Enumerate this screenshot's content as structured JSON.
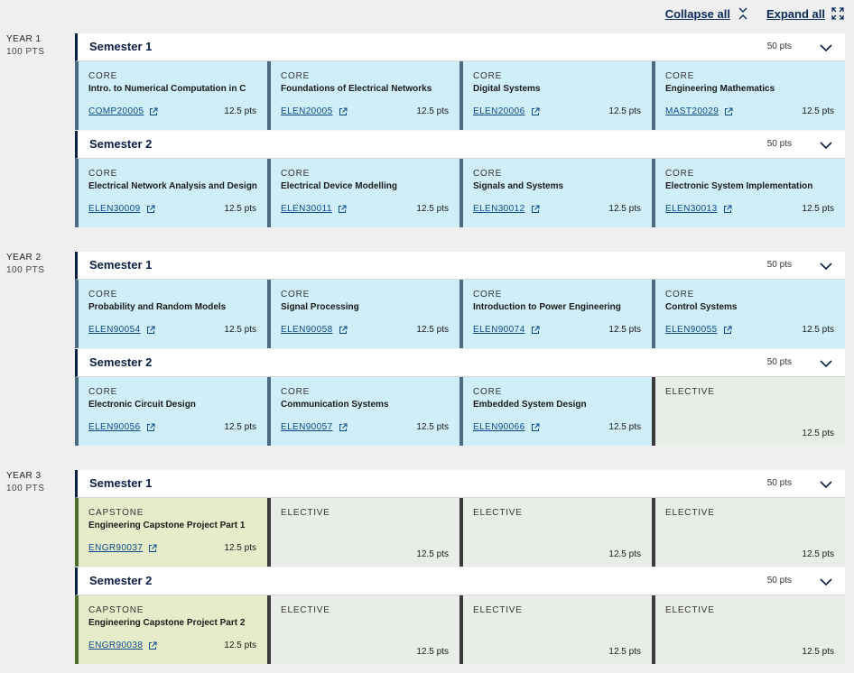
{
  "controls": {
    "collapse_all": "Collapse all",
    "expand_all": "Expand all"
  },
  "years": [
    {
      "label": "YEAR 1",
      "pts": "100 PTS",
      "semesters": [
        {
          "title": "Semester 1",
          "pts": "50 pts",
          "subjects": [
            {
              "type": "CORE",
              "name": "Intro. to Numerical Computation in C",
              "code": "COMP20005",
              "pts": "12.5 pts"
            },
            {
              "type": "CORE",
              "name": "Foundations of Electrical Networks",
              "code": "ELEN20005",
              "pts": "12.5 pts"
            },
            {
              "type": "CORE",
              "name": "Digital Systems",
              "code": "ELEN20006",
              "pts": "12.5 pts"
            },
            {
              "type": "CORE",
              "name": "Engineering Mathematics",
              "code": "MAST20029",
              "pts": "12.5 pts"
            }
          ]
        },
        {
          "title": "Semester 2",
          "pts": "50 pts",
          "subjects": [
            {
              "type": "CORE",
              "name": "Electrical Network Analysis and Design",
              "code": "ELEN30009",
              "pts": "12.5 pts"
            },
            {
              "type": "CORE",
              "name": "Electrical Device Modelling",
              "code": "ELEN30011",
              "pts": "12.5 pts"
            },
            {
              "type": "CORE",
              "name": "Signals and Systems",
              "code": "ELEN30012",
              "pts": "12.5 pts"
            },
            {
              "type": "CORE",
              "name": "Electronic System Implementation",
              "code": "ELEN30013",
              "pts": "12.5 pts"
            }
          ]
        }
      ]
    },
    {
      "label": "YEAR 2",
      "pts": "100 PTS",
      "semesters": [
        {
          "title": "Semester 1",
          "pts": "50 pts",
          "subjects": [
            {
              "type": "CORE",
              "name": "Probability and Random Models",
              "code": "ELEN90054",
              "pts": "12.5 pts"
            },
            {
              "type": "CORE",
              "name": "Signal Processing",
              "code": "ELEN90058",
              "pts": "12.5 pts"
            },
            {
              "type": "CORE",
              "name": "Introduction to Power Engineering",
              "code": "ELEN90074",
              "pts": "12.5 pts"
            },
            {
              "type": "CORE",
              "name": "Control Systems",
              "code": "ELEN90055",
              "pts": "12.5 pts"
            }
          ]
        },
        {
          "title": "Semester 2",
          "pts": "50 pts",
          "subjects": [
            {
              "type": "CORE",
              "name": "Electronic Circuit Design",
              "code": "ELEN90056",
              "pts": "12.5 pts"
            },
            {
              "type": "CORE",
              "name": "Communication Systems",
              "code": "ELEN90057",
              "pts": "12.5 pts"
            },
            {
              "type": "CORE",
              "name": "Embedded System Design",
              "code": "ELEN90066",
              "pts": "12.5 pts"
            },
            {
              "type": "ELECTIVE",
              "name": "",
              "code": "",
              "pts": "12.5 pts"
            }
          ]
        }
      ]
    },
    {
      "label": "YEAR 3",
      "pts": "100 PTS",
      "semesters": [
        {
          "title": "Semester 1",
          "pts": "50 pts",
          "subjects": [
            {
              "type": "CAPSTONE",
              "name": "Engineering Capstone Project Part 1",
              "code": "ENGR90037",
              "pts": "12.5 pts"
            },
            {
              "type": "ELECTIVE",
              "name": "",
              "code": "",
              "pts": "12.5 pts"
            },
            {
              "type": "ELECTIVE",
              "name": "",
              "code": "",
              "pts": "12.5 pts"
            },
            {
              "type": "ELECTIVE",
              "name": "",
              "code": "",
              "pts": "12.5 pts"
            }
          ]
        },
        {
          "title": "Semester 2",
          "pts": "50 pts",
          "subjects": [
            {
              "type": "CAPSTONE",
              "name": "Engineering Capstone Project Part 2",
              "code": "ENGR90038",
              "pts": "12.5 pts"
            },
            {
              "type": "ELECTIVE",
              "name": "",
              "code": "",
              "pts": "12.5 pts"
            },
            {
              "type": "ELECTIVE",
              "name": "",
              "code": "",
              "pts": "12.5 pts"
            },
            {
              "type": "ELECTIVE",
              "name": "",
              "code": "",
              "pts": "12.5 pts"
            }
          ]
        }
      ]
    }
  ]
}
